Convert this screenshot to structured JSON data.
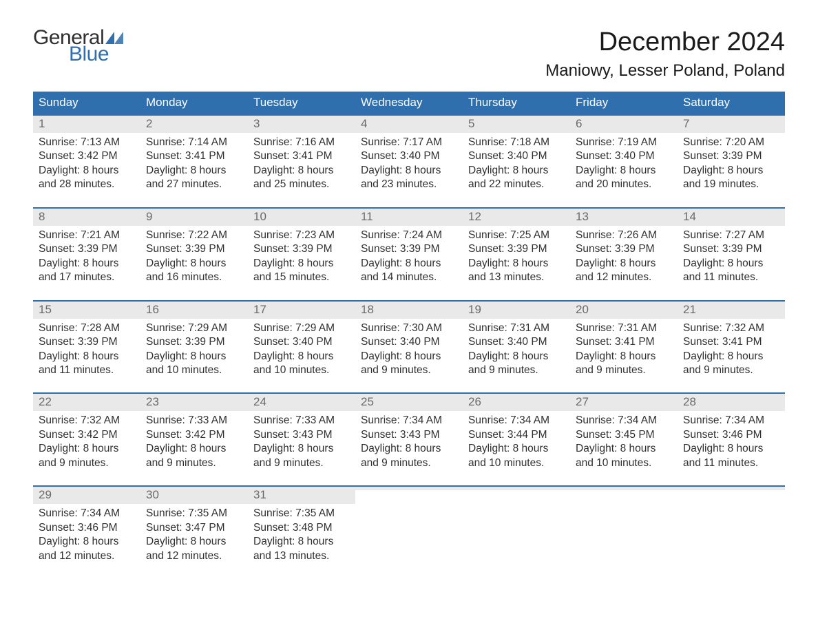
{
  "brand": {
    "general": "General",
    "blue": "Blue",
    "flag_color": "#2f6fae"
  },
  "title": "December 2024",
  "location": "Maniowy, Lesser Poland, Poland",
  "colors": {
    "header_bg": "#2f6fae",
    "header_text": "#ffffff",
    "daynum_bg": "#e9e9e9",
    "daynum_text": "#6a6a6a",
    "body_text": "#303030",
    "week_border": "#2f6fae",
    "page_bg": "#ffffff"
  },
  "typography": {
    "title_fontsize": 38,
    "location_fontsize": 24,
    "header_fontsize": 17,
    "daynum_fontsize": 17,
    "body_fontsize": 15.5
  },
  "daynames": [
    "Sunday",
    "Monday",
    "Tuesday",
    "Wednesday",
    "Thursday",
    "Friday",
    "Saturday"
  ],
  "labels": {
    "sunrise": "Sunrise: ",
    "sunset": "Sunset: ",
    "daylight": "Daylight: "
  },
  "weeks": [
    [
      {
        "n": 1,
        "sunrise": "7:13 AM",
        "sunset": "3:42 PM",
        "daylight": "8 hours and 28 minutes."
      },
      {
        "n": 2,
        "sunrise": "7:14 AM",
        "sunset": "3:41 PM",
        "daylight": "8 hours and 27 minutes."
      },
      {
        "n": 3,
        "sunrise": "7:16 AM",
        "sunset": "3:41 PM",
        "daylight": "8 hours and 25 minutes."
      },
      {
        "n": 4,
        "sunrise": "7:17 AM",
        "sunset": "3:40 PM",
        "daylight": "8 hours and 23 minutes."
      },
      {
        "n": 5,
        "sunrise": "7:18 AM",
        "sunset": "3:40 PM",
        "daylight": "8 hours and 22 minutes."
      },
      {
        "n": 6,
        "sunrise": "7:19 AM",
        "sunset": "3:40 PM",
        "daylight": "8 hours and 20 minutes."
      },
      {
        "n": 7,
        "sunrise": "7:20 AM",
        "sunset": "3:39 PM",
        "daylight": "8 hours and 19 minutes."
      }
    ],
    [
      {
        "n": 8,
        "sunrise": "7:21 AM",
        "sunset": "3:39 PM",
        "daylight": "8 hours and 17 minutes."
      },
      {
        "n": 9,
        "sunrise": "7:22 AM",
        "sunset": "3:39 PM",
        "daylight": "8 hours and 16 minutes."
      },
      {
        "n": 10,
        "sunrise": "7:23 AM",
        "sunset": "3:39 PM",
        "daylight": "8 hours and 15 minutes."
      },
      {
        "n": 11,
        "sunrise": "7:24 AM",
        "sunset": "3:39 PM",
        "daylight": "8 hours and 14 minutes."
      },
      {
        "n": 12,
        "sunrise": "7:25 AM",
        "sunset": "3:39 PM",
        "daylight": "8 hours and 13 minutes."
      },
      {
        "n": 13,
        "sunrise": "7:26 AM",
        "sunset": "3:39 PM",
        "daylight": "8 hours and 12 minutes."
      },
      {
        "n": 14,
        "sunrise": "7:27 AM",
        "sunset": "3:39 PM",
        "daylight": "8 hours and 11 minutes."
      }
    ],
    [
      {
        "n": 15,
        "sunrise": "7:28 AM",
        "sunset": "3:39 PM",
        "daylight": "8 hours and 11 minutes."
      },
      {
        "n": 16,
        "sunrise": "7:29 AM",
        "sunset": "3:39 PM",
        "daylight": "8 hours and 10 minutes."
      },
      {
        "n": 17,
        "sunrise": "7:29 AM",
        "sunset": "3:40 PM",
        "daylight": "8 hours and 10 minutes."
      },
      {
        "n": 18,
        "sunrise": "7:30 AM",
        "sunset": "3:40 PM",
        "daylight": "8 hours and 9 minutes."
      },
      {
        "n": 19,
        "sunrise": "7:31 AM",
        "sunset": "3:40 PM",
        "daylight": "8 hours and 9 minutes."
      },
      {
        "n": 20,
        "sunrise": "7:31 AM",
        "sunset": "3:41 PM",
        "daylight": "8 hours and 9 minutes."
      },
      {
        "n": 21,
        "sunrise": "7:32 AM",
        "sunset": "3:41 PM",
        "daylight": "8 hours and 9 minutes."
      }
    ],
    [
      {
        "n": 22,
        "sunrise": "7:32 AM",
        "sunset": "3:42 PM",
        "daylight": "8 hours and 9 minutes."
      },
      {
        "n": 23,
        "sunrise": "7:33 AM",
        "sunset": "3:42 PM",
        "daylight": "8 hours and 9 minutes."
      },
      {
        "n": 24,
        "sunrise": "7:33 AM",
        "sunset": "3:43 PM",
        "daylight": "8 hours and 9 minutes."
      },
      {
        "n": 25,
        "sunrise": "7:34 AM",
        "sunset": "3:43 PM",
        "daylight": "8 hours and 9 minutes."
      },
      {
        "n": 26,
        "sunrise": "7:34 AM",
        "sunset": "3:44 PM",
        "daylight": "8 hours and 10 minutes."
      },
      {
        "n": 27,
        "sunrise": "7:34 AM",
        "sunset": "3:45 PM",
        "daylight": "8 hours and 10 minutes."
      },
      {
        "n": 28,
        "sunrise": "7:34 AM",
        "sunset": "3:46 PM",
        "daylight": "8 hours and 11 minutes."
      }
    ],
    [
      {
        "n": 29,
        "sunrise": "7:34 AM",
        "sunset": "3:46 PM",
        "daylight": "8 hours and 12 minutes."
      },
      {
        "n": 30,
        "sunrise": "7:35 AM",
        "sunset": "3:47 PM",
        "daylight": "8 hours and 12 minutes."
      },
      {
        "n": 31,
        "sunrise": "7:35 AM",
        "sunset": "3:48 PM",
        "daylight": "8 hours and 13 minutes."
      },
      null,
      null,
      null,
      null
    ]
  ]
}
